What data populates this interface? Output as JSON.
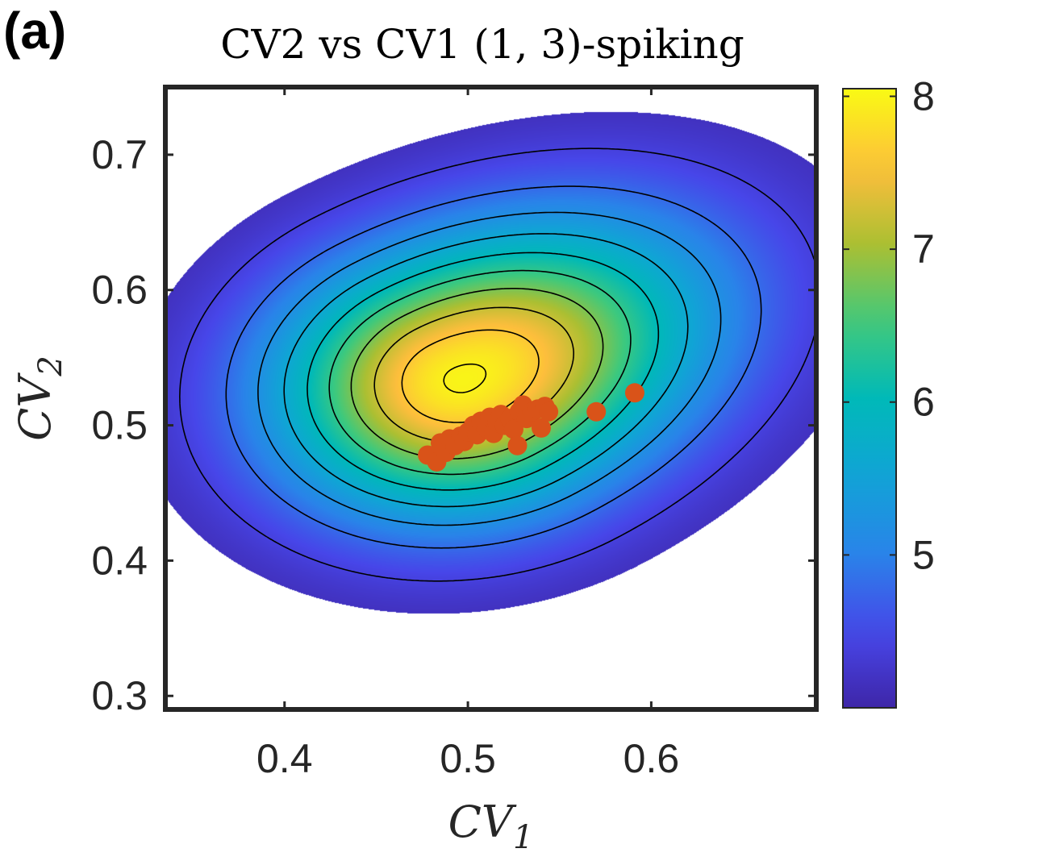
{
  "panel_label": "(a)",
  "chart_data": {
    "type": "heatmap",
    "title": "CV2 vs CV1 (1, 3)-spiking",
    "xlabel": "CV",
    "xlabel_sub": "1",
    "ylabel": "CV",
    "ylabel_sub": "2",
    "xlim": [
      0.335,
      0.69
    ],
    "ylim": [
      0.29,
      0.75
    ],
    "xticks": [
      0.4,
      0.5,
      0.6
    ],
    "xtick_labels": [
      "0.4",
      "0.5",
      "0.6"
    ],
    "yticks": [
      0.3,
      0.4,
      0.5,
      0.6,
      0.7
    ],
    "ytick_labels": [
      "0.3",
      "0.4",
      "0.5",
      "0.6",
      "0.7"
    ],
    "density": {
      "center": [
        0.497,
        0.534
      ],
      "peak": 8.0,
      "cutoff": 4.0,
      "contour_levels": [
        4.4,
        4.8,
        5.2,
        5.6,
        6.0,
        6.4,
        6.8,
        7.2,
        7.6,
        7.96
      ]
    },
    "colorbar": {
      "min": 4.0,
      "max": 8.05,
      "ticks": [
        5,
        6,
        7,
        8
      ],
      "tick_labels": [
        "5",
        "6",
        "7",
        "8"
      ],
      "colormap": "parula"
    },
    "scatter": {
      "color": "#D95319",
      "points": [
        {
          "x": 0.478,
          "y": 0.478
        },
        {
          "x": 0.483,
          "y": 0.473
        },
        {
          "x": 0.485,
          "y": 0.487
        },
        {
          "x": 0.488,
          "y": 0.48
        },
        {
          "x": 0.49,
          "y": 0.49
        },
        {
          "x": 0.493,
          "y": 0.485
        },
        {
          "x": 0.496,
          "y": 0.492
        },
        {
          "x": 0.498,
          "y": 0.488
        },
        {
          "x": 0.5,
          "y": 0.495
        },
        {
          "x": 0.503,
          "y": 0.5
        },
        {
          "x": 0.505,
          "y": 0.493
        },
        {
          "x": 0.507,
          "y": 0.503
        },
        {
          "x": 0.51,
          "y": 0.498
        },
        {
          "x": 0.512,
          "y": 0.506
        },
        {
          "x": 0.514,
          "y": 0.494
        },
        {
          "x": 0.516,
          "y": 0.502
        },
        {
          "x": 0.518,
          "y": 0.508
        },
        {
          "x": 0.52,
          "y": 0.5
        },
        {
          "x": 0.523,
          "y": 0.505
        },
        {
          "x": 0.525,
          "y": 0.497
        },
        {
          "x": 0.527,
          "y": 0.485
        },
        {
          "x": 0.528,
          "y": 0.51
        },
        {
          "x": 0.53,
          "y": 0.515
        },
        {
          "x": 0.532,
          "y": 0.505
        },
        {
          "x": 0.535,
          "y": 0.51
        },
        {
          "x": 0.538,
          "y": 0.512
        },
        {
          "x": 0.54,
          "y": 0.498
        },
        {
          "x": 0.542,
          "y": 0.514
        },
        {
          "x": 0.544,
          "y": 0.51
        },
        {
          "x": 0.57,
          "y": 0.51
        },
        {
          "x": 0.591,
          "y": 0.524
        }
      ]
    }
  }
}
